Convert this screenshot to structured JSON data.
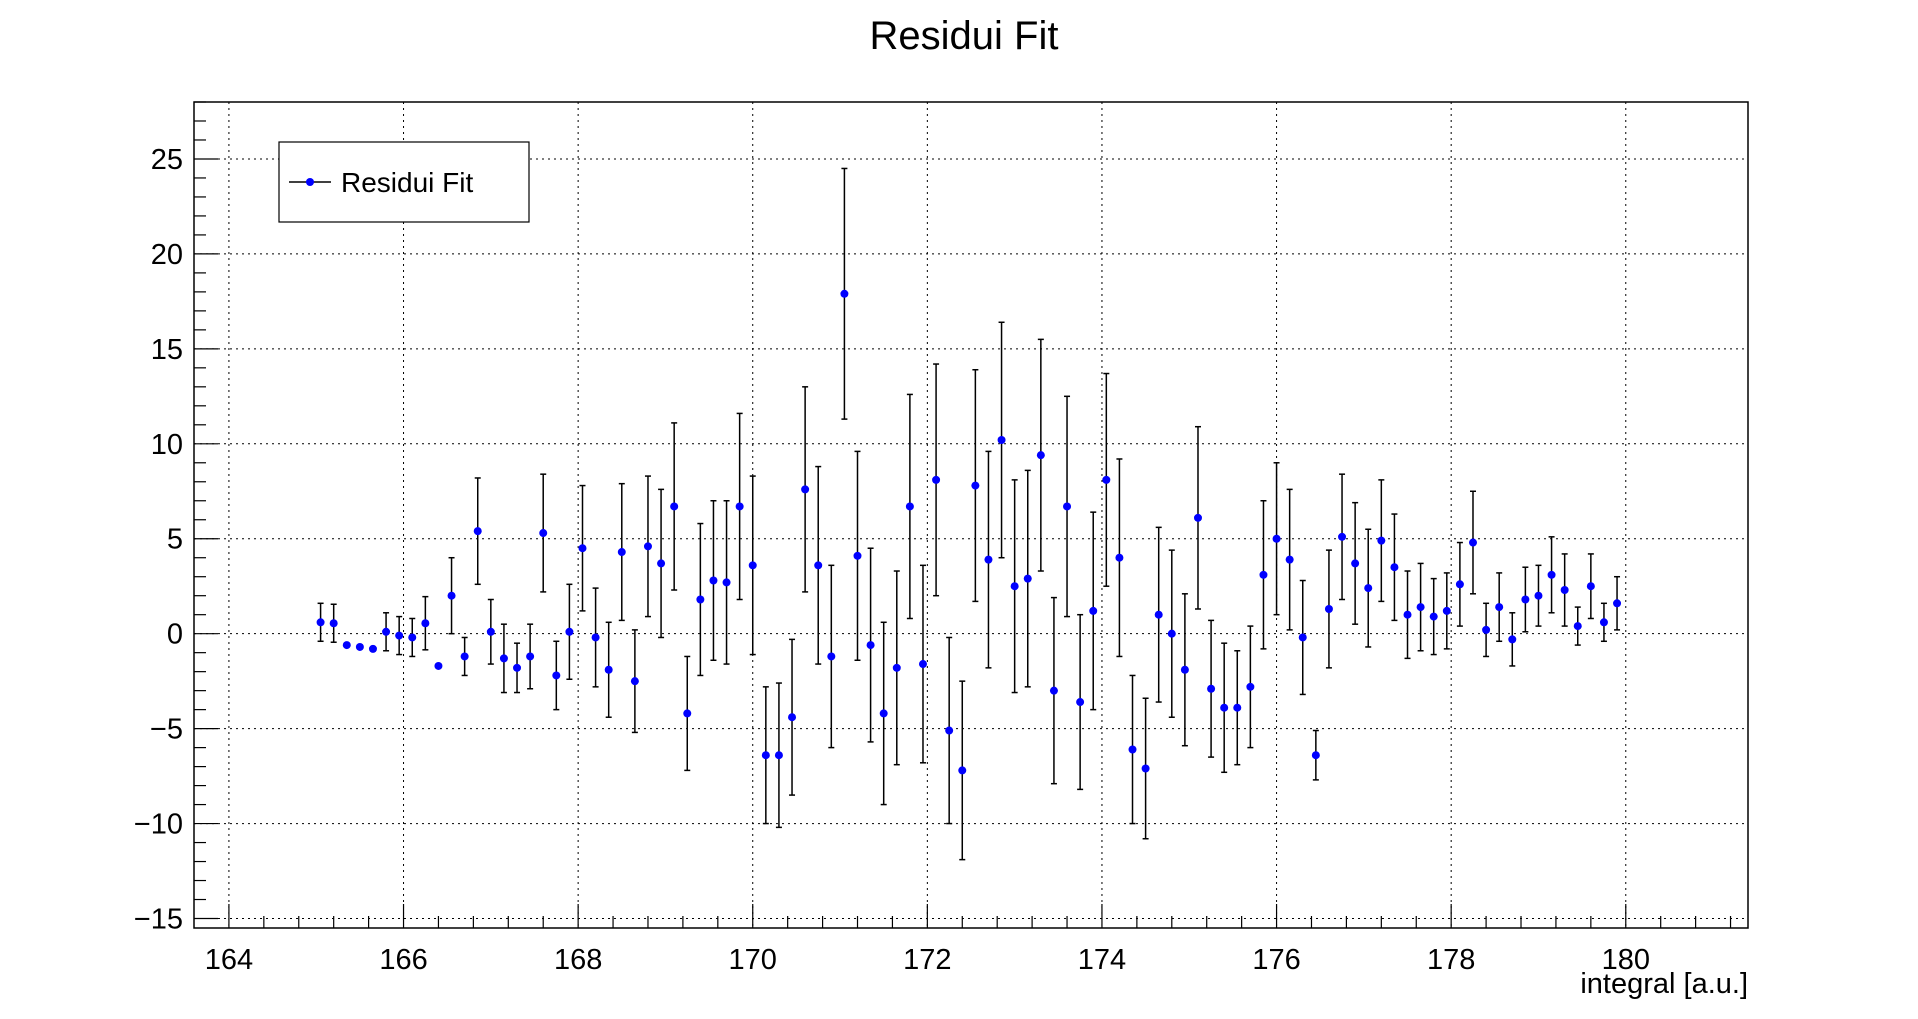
{
  "chart_data": {
    "type": "scatter",
    "title": "Residui Fit",
    "xlabel": "integral [a.u.]",
    "ylabel": "",
    "xlim": [
      163.6,
      181.4
    ],
    "ylim": [
      -15.5,
      28
    ],
    "x_ticks": [
      164,
      166,
      168,
      170,
      172,
      174,
      176,
      178,
      180
    ],
    "y_ticks": [
      -15,
      -10,
      -5,
      0,
      5,
      10,
      15,
      20,
      25
    ],
    "y_tick_labels": [
      "−15",
      "−10",
      "−5",
      "0",
      "5",
      "10",
      "15",
      "20",
      "25"
    ],
    "x_tick_labels": [
      "164",
      "166",
      "168",
      "170",
      "172",
      "174",
      "176",
      "178",
      "180"
    ],
    "grid": true,
    "legend": {
      "position": "top-left",
      "entries": [
        "Residui Fit"
      ]
    },
    "marker_color": "#0000ff",
    "error_color": "#000000",
    "series": [
      {
        "name": "Residui Fit",
        "points": [
          [
            165.05,
            0.6,
            1.0
          ],
          [
            165.2,
            0.55,
            1.0
          ],
          [
            165.35,
            -0.6,
            0
          ],
          [
            165.5,
            -0.7,
            0
          ],
          [
            165.65,
            -0.8,
            0
          ],
          [
            165.8,
            0.1,
            1.0
          ],
          [
            165.95,
            -0.1,
            1.0
          ],
          [
            166.1,
            -0.2,
            1.0
          ],
          [
            166.25,
            0.55,
            1.4
          ],
          [
            166.4,
            -1.7,
            0
          ],
          [
            166.55,
            2.0,
            2.0
          ],
          [
            166.7,
            -1.2,
            1.0
          ],
          [
            166.85,
            5.4,
            2.8
          ],
          [
            167.0,
            0.1,
            1.7
          ],
          [
            167.15,
            -1.3,
            1.8
          ],
          [
            167.3,
            -1.8,
            1.3
          ],
          [
            167.45,
            -1.2,
            1.7
          ],
          [
            167.6,
            5.3,
            3.1
          ],
          [
            167.75,
            -2.2,
            1.8
          ],
          [
            167.9,
            0.1,
            2.5
          ],
          [
            168.05,
            4.5,
            3.3
          ],
          [
            168.2,
            -0.2,
            2.6
          ],
          [
            168.35,
            -1.9,
            2.5
          ],
          [
            168.5,
            4.3,
            3.6
          ],
          [
            168.65,
            -2.5,
            2.7
          ],
          [
            168.8,
            4.6,
            3.7
          ],
          [
            168.95,
            3.7,
            3.9
          ],
          [
            169.1,
            6.7,
            4.4
          ],
          [
            169.25,
            -4.2,
            3.0
          ],
          [
            169.4,
            1.8,
            4.0
          ],
          [
            169.55,
            2.8,
            4.2
          ],
          [
            169.7,
            2.7,
            4.3
          ],
          [
            169.85,
            6.7,
            4.9
          ],
          [
            170.0,
            3.6,
            4.7
          ],
          [
            170.15,
            -6.4,
            3.6
          ],
          [
            170.3,
            -6.4,
            3.8
          ],
          [
            170.45,
            -4.4,
            4.1
          ],
          [
            170.6,
            7.6,
            5.4
          ],
          [
            170.75,
            3.6,
            5.2
          ],
          [
            170.9,
            -1.2,
            4.8
          ],
          [
            171.05,
            17.9,
            6.6
          ],
          [
            171.2,
            4.1,
            5.5
          ],
          [
            171.35,
            -0.6,
            5.1
          ],
          [
            171.5,
            -4.2,
            4.8
          ],
          [
            171.65,
            -1.8,
            5.1
          ],
          [
            171.8,
            6.7,
            5.9
          ],
          [
            171.95,
            -1.6,
            5.2
          ],
          [
            172.1,
            8.1,
            6.1
          ],
          [
            172.25,
            -5.1,
            4.9
          ],
          [
            172.4,
            -7.2,
            4.7
          ],
          [
            172.55,
            7.8,
            6.1
          ],
          [
            172.7,
            3.9,
            5.7
          ],
          [
            172.85,
            10.2,
            6.2
          ],
          [
            173.0,
            2.5,
            5.6
          ],
          [
            173.15,
            2.9,
            5.7
          ],
          [
            173.3,
            9.4,
            6.1
          ],
          [
            173.45,
            -3.0,
            4.9
          ],
          [
            173.6,
            6.7,
            5.8
          ],
          [
            173.75,
            -3.6,
            4.6
          ],
          [
            173.9,
            1.2,
            5.2
          ],
          [
            174.05,
            8.1,
            5.6
          ],
          [
            174.2,
            4.0,
            5.2
          ],
          [
            174.35,
            -6.1,
            3.9
          ],
          [
            174.5,
            -7.1,
            3.7
          ],
          [
            174.65,
            1.0,
            4.6
          ],
          [
            174.8,
            0.0,
            4.4
          ],
          [
            174.95,
            -1.9,
            4.0
          ],
          [
            175.1,
            6.1,
            4.8
          ],
          [
            175.25,
            -2.9,
            3.6
          ],
          [
            175.4,
            -3.9,
            3.4
          ],
          [
            175.55,
            -3.9,
            3.0
          ],
          [
            175.7,
            -2.8,
            3.2
          ],
          [
            175.85,
            3.1,
            3.9
          ],
          [
            176.0,
            5.0,
            4.0
          ],
          [
            176.15,
            3.9,
            3.7
          ],
          [
            176.3,
            -0.2,
            3.0
          ],
          [
            176.45,
            -6.4,
            1.3
          ],
          [
            176.6,
            1.3,
            3.1
          ],
          [
            176.75,
            5.1,
            3.3
          ],
          [
            176.9,
            3.7,
            3.2
          ],
          [
            177.05,
            2.4,
            3.1
          ],
          [
            177.2,
            4.9,
            3.2
          ],
          [
            177.35,
            3.5,
            2.8
          ],
          [
            177.5,
            1.0,
            2.3
          ],
          [
            177.65,
            1.4,
            2.3
          ],
          [
            177.8,
            0.9,
            2.0
          ],
          [
            177.95,
            1.2,
            2.0
          ],
          [
            178.1,
            2.6,
            2.2
          ],
          [
            178.25,
            4.8,
            2.7
          ],
          [
            178.4,
            0.2,
            1.4
          ],
          [
            178.55,
            1.4,
            1.8
          ],
          [
            178.7,
            -0.3,
            1.4
          ],
          [
            178.85,
            1.8,
            1.7
          ],
          [
            179.0,
            2.0,
            1.6
          ],
          [
            179.15,
            3.1,
            2.0
          ],
          [
            179.3,
            2.3,
            1.9
          ],
          [
            179.45,
            0.4,
            1.0
          ],
          [
            179.6,
            2.5,
            1.7
          ],
          [
            179.75,
            0.6,
            1.0
          ],
          [
            179.9,
            1.6,
            1.4
          ]
        ]
      }
    ]
  }
}
